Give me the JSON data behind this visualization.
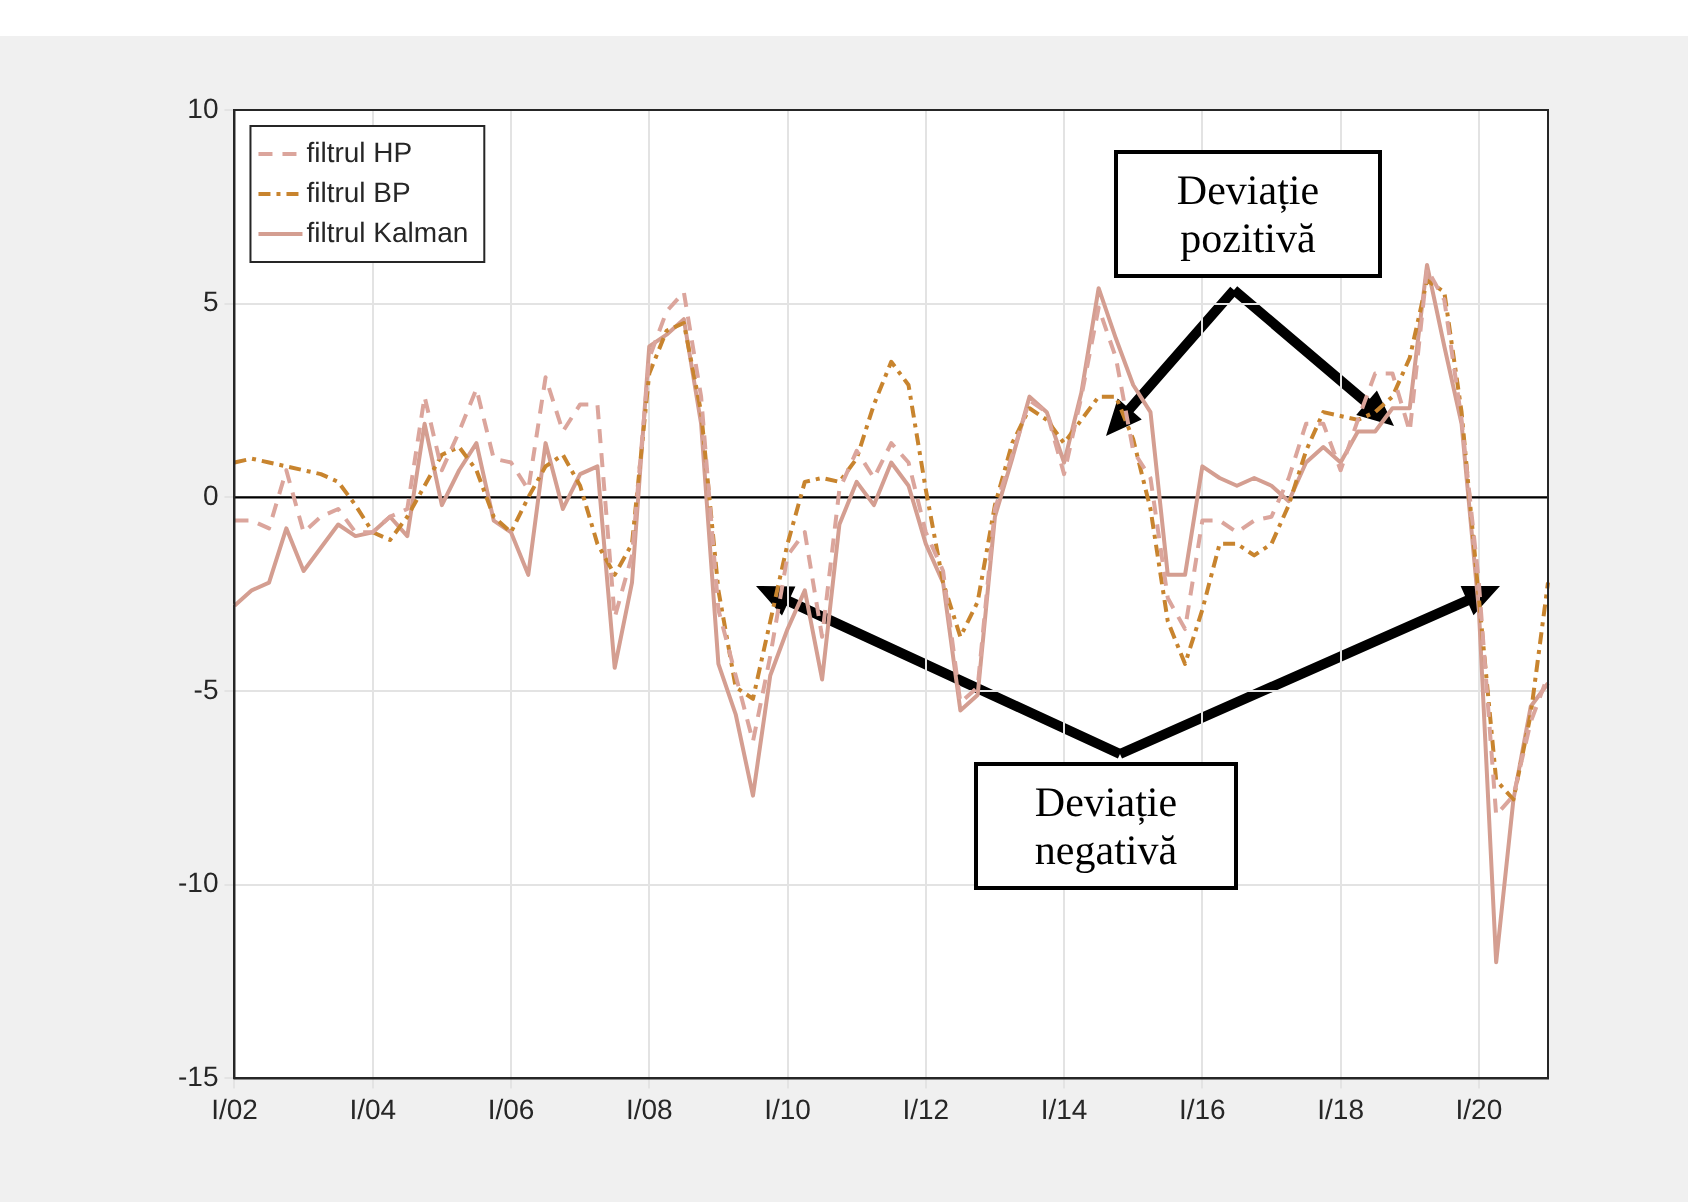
{
  "chart_data": {
    "type": "line",
    "categories": [
      "I/02",
      null,
      null,
      null,
      null,
      null,
      null,
      null,
      "I/04",
      null,
      null,
      null,
      null,
      null,
      null,
      null,
      "I/06",
      null,
      null,
      null,
      null,
      null,
      null,
      null,
      "I/08",
      null,
      null,
      null,
      null,
      null,
      null,
      null,
      "I/10",
      null,
      null,
      null,
      null,
      null,
      null,
      null,
      "I/12",
      null,
      null,
      null,
      null,
      null,
      null,
      null,
      "I/14",
      null,
      null,
      null,
      null,
      null,
      null,
      null,
      "I/16",
      null,
      null,
      null,
      null,
      null,
      null,
      null,
      "I/18",
      null,
      null,
      null,
      null,
      null,
      null,
      null,
      "I/20",
      null,
      null,
      null,
      null
    ],
    "series": [
      {
        "name": "filtrul HP",
        "color": "#dba59c",
        "line_style": "dashed",
        "values": [
          -0.6,
          -0.6,
          -0.8,
          0.7,
          -0.9,
          -0.5,
          -0.3,
          -0.9,
          -0.9,
          -0.5,
          -0.3,
          2.6,
          0.7,
          1.7,
          2.8,
          1.0,
          0.9,
          0.2,
          3.1,
          1.7,
          2.4,
          2.4,
          -3.1,
          -1.5,
          3.6,
          4.8,
          5.3,
          2.6,
          -2.9,
          -4.6,
          -6.3,
          -4.1,
          -1.5,
          -0.9,
          -3.6,
          0.2,
          1.2,
          0.5,
          1.4,
          0.9,
          -0.9,
          -1.9,
          -5.3,
          -4.9,
          -0.3,
          1.1,
          2.5,
          2.2,
          0.6,
          2.6,
          4.9,
          3.6,
          1.2,
          0.5,
          -2.6,
          -3.4,
          -0.6,
          -0.6,
          -0.9,
          -0.6,
          -0.5,
          0.5,
          1.9,
          1.9,
          0.7,
          2.0,
          3.2,
          3.2,
          1.7,
          5.9,
          5.1,
          2.0,
          -2.2,
          -8.2,
          -7.7,
          -5.8,
          -4.6
        ]
      },
      {
        "name": "filtrul BP",
        "color": "#c8842e",
        "line_style": "dashdot",
        "values": [
          0.9,
          1.0,
          0.9,
          0.8,
          0.7,
          0.6,
          0.4,
          -0.2,
          -0.9,
          -1.1,
          -0.5,
          0.3,
          1.1,
          1.3,
          0.7,
          -0.5,
          -0.9,
          0.0,
          0.8,
          1.1,
          0.3,
          -1.2,
          -2.0,
          -1.2,
          3.2,
          4.3,
          4.5,
          2.2,
          -2.4,
          -4.9,
          -5.2,
          -3.2,
          -1.2,
          0.4,
          0.5,
          0.4,
          1.0,
          2.4,
          3.5,
          2.9,
          0.2,
          -2.2,
          -3.6,
          -2.7,
          -0.2,
          1.4,
          2.3,
          2.0,
          1.4,
          2.0,
          2.6,
          2.6,
          1.5,
          -0.3,
          -3.2,
          -4.3,
          -2.9,
          -1.2,
          -1.2,
          -1.5,
          -1.2,
          -0.2,
          1.2,
          2.2,
          2.1,
          2.0,
          2.2,
          2.6,
          3.6,
          5.6,
          5.3,
          2.2,
          -2.6,
          -7.3,
          -7.8,
          -5.6,
          -2.2
        ]
      },
      {
        "name": "filtrul Kalman",
        "color": "#d49e91",
        "line_style": "solid",
        "values": [
          -2.8,
          -2.4,
          -2.2,
          -0.8,
          -1.9,
          -1.3,
          -0.7,
          -1.0,
          -0.9,
          -0.5,
          -1.0,
          1.9,
          -0.2,
          0.7,
          1.4,
          -0.6,
          -0.9,
          -2.0,
          1.4,
          -0.3,
          0.6,
          0.8,
          -4.4,
          -2.2,
          3.9,
          4.2,
          4.6,
          1.9,
          -4.3,
          -5.6,
          -7.7,
          -4.6,
          -3.4,
          -2.4,
          -4.7,
          -0.7,
          0.4,
          -0.2,
          0.9,
          0.3,
          -1.2,
          -2.2,
          -5.5,
          -5.1,
          -0.5,
          1.0,
          2.6,
          2.2,
          0.9,
          2.7,
          5.4,
          4.1,
          2.9,
          2.2,
          -2.0,
          -2.0,
          0.8,
          0.5,
          0.3,
          0.5,
          0.3,
          -0.1,
          0.9,
          1.3,
          0.9,
          1.7,
          1.7,
          2.3,
          2.3,
          6.0,
          3.9,
          1.9,
          -2.9,
          -12.0,
          -7.8,
          -5.4,
          -4.8
        ]
      }
    ],
    "ylim": [
      -15,
      10
    ],
    "yticks": [
      -15,
      -10,
      -5,
      0,
      5,
      10
    ],
    "grid": true,
    "legend": "top left",
    "marker": "none",
    "ref_lines": [
      {
        "axis": "y",
        "value": 0,
        "color": "#000000"
      }
    ],
    "annotations": [
      "Deviație pozitivă",
      "Deviație negativă"
    ]
  }
}
